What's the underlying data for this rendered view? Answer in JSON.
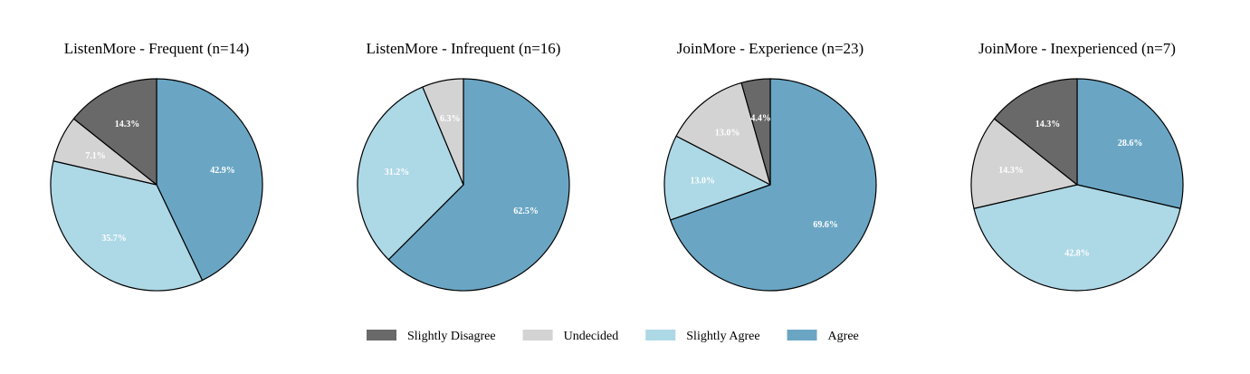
{
  "chart_data": {
    "type": "pie",
    "categories": [
      "Slightly Disagree",
      "Undecided",
      "Slightly Agree",
      "Agree"
    ],
    "colors": {
      "Slightly Disagree": "#696969",
      "Undecided": "#d3d3d3",
      "Slightly Agree": "#add8e6",
      "Agree": "#6aa6c4"
    },
    "legend": {
      "placement": "bottom-center",
      "entries": [
        "Slightly Disagree",
        "Undecided",
        "Slightly Agree",
        "Agree"
      ]
    },
    "pies": [
      {
        "title": "ListenMore - Frequent (n=14)",
        "slices": [
          {
            "category": "Agree",
            "value": 42.9,
            "label": "42.9%"
          },
          {
            "category": "Slightly Agree",
            "value": 35.7,
            "label": "35.7%"
          },
          {
            "category": "Undecided",
            "value": 7.1,
            "label": "7.1%"
          },
          {
            "category": "Slightly Disagree",
            "value": 14.3,
            "label": "14.3%"
          }
        ]
      },
      {
        "title": "ListenMore - Infrequent (n=16)",
        "slices": [
          {
            "category": "Agree",
            "value": 62.5,
            "label": "62.5%"
          },
          {
            "category": "Slightly Agree",
            "value": 31.2,
            "label": "31.2%"
          },
          {
            "category": "Undecided",
            "value": 6.3,
            "label": "6.3%"
          }
        ]
      },
      {
        "title": "JoinMore - Experience (n=23)",
        "slices": [
          {
            "category": "Agree",
            "value": 69.6,
            "label": "69.6%"
          },
          {
            "category": "Slightly Agree",
            "value": 13.0,
            "label": "13.0%"
          },
          {
            "category": "Undecided",
            "value": 13.0,
            "label": "13.0%"
          },
          {
            "category": "Slightly Disagree",
            "value": 4.4,
            "label": "4.4%"
          }
        ]
      },
      {
        "title": "JoinMore - Inexperienced (n=7)",
        "slices": [
          {
            "category": "Agree",
            "value": 28.6,
            "label": "28.6%"
          },
          {
            "category": "Slightly Agree",
            "value": 42.8,
            "label": "42.8%"
          },
          {
            "category": "Undecided",
            "value": 14.3,
            "label": "14.3%"
          },
          {
            "category": "Slightly Disagree",
            "value": 14.3,
            "label": "14.3%"
          }
        ]
      }
    ]
  }
}
